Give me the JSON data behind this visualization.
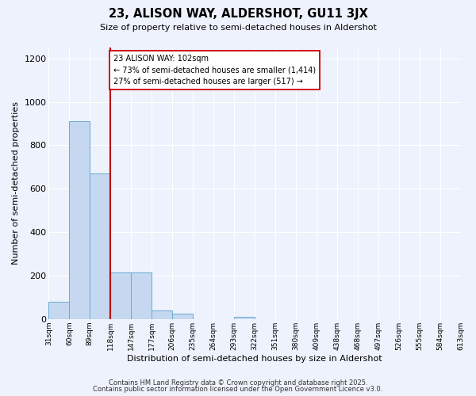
{
  "title": "23, ALISON WAY, ALDERSHOT, GU11 3JX",
  "subtitle": "Size of property relative to semi-detached houses in Aldershot",
  "xlabel": "Distribution of semi-detached houses by size in Aldershot",
  "ylabel": "Number of semi-detached properties",
  "bar_values": [
    80,
    910,
    670,
    215,
    215,
    40,
    25,
    0,
    0,
    12,
    0,
    0,
    0,
    0,
    0,
    0,
    0,
    0,
    0,
    0
  ],
  "bar_labels": [
    "31sqm",
    "60sqm",
    "89sqm",
    "118sqm",
    "147sqm",
    "177sqm",
    "206sqm",
    "235sqm",
    "264sqm",
    "293sqm",
    "322sqm",
    "351sqm",
    "380sqm",
    "409sqm",
    "438sqm",
    "468sqm",
    "497sqm",
    "526sqm",
    "555sqm",
    "584sqm",
    "613sqm"
  ],
  "bar_color": "#c5d8f0",
  "bar_edge_color": "#6aaad4",
  "vline_color": "#bb0000",
  "annotation_title": "23 ALISON WAY: 102sqm",
  "annotation_line1": "← 73% of semi-detached houses are smaller (1,414)",
  "annotation_line2": "27% of semi-detached houses are larger (517) →",
  "annotation_box_color": "#ffffff",
  "annotation_box_edge": "#cc0000",
  "ylim": [
    0,
    1250
  ],
  "yticks": [
    0,
    200,
    400,
    600,
    800,
    1000,
    1200
  ],
  "bg_color": "#eef2fc",
  "grid_color": "#ffffff",
  "footer_line1": "Contains HM Land Registry data © Crown copyright and database right 2025.",
  "footer_line2": "Contains public sector information licensed under the Open Government Licence v3.0."
}
